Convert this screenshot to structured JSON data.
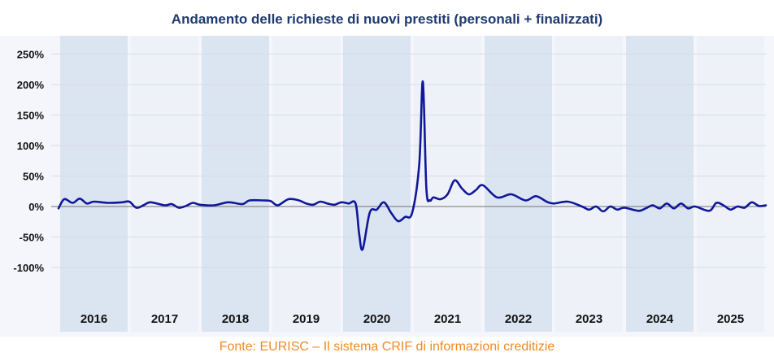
{
  "chart_data": {
    "type": "line",
    "title": "Andamento delle richieste di nuovi prestiti (personali + finalizzati)",
    "source": "Fonte: EURISC – Il sistema CRIF di informazioni creditizie",
    "xlabel": "",
    "ylabel": "",
    "y_unit": "%",
    "ylim": [
      -100,
      250
    ],
    "y_ticks": [
      "250%",
      "200%",
      "150%",
      "100%",
      "50%",
      "0%",
      "-50%",
      "-100%"
    ],
    "y_tick_values": [
      250,
      200,
      150,
      100,
      50,
      0,
      -50,
      -100
    ],
    "x_range": [
      2016,
      2026
    ],
    "years": [
      "2016",
      "2017",
      "2018",
      "2019",
      "2020",
      "2021",
      "2022",
      "2023",
      "2024",
      "2025"
    ],
    "grid": true,
    "band_colors": [
      "#dbe5f1",
      "#eef2f8"
    ],
    "line_color": "#10179a",
    "series": [
      {
        "x": [
          2016.0,
          2016.08,
          2016.2,
          2016.3,
          2016.4,
          2016.5,
          2016.7,
          2016.9,
          2017.0,
          2017.1,
          2017.2,
          2017.3,
          2017.5,
          2017.6,
          2017.7,
          2017.8,
          2017.9,
          2018.0,
          2018.2,
          2018.4,
          2018.6,
          2018.7,
          2018.9,
          2019.0,
          2019.1,
          2019.25,
          2019.4,
          2019.5,
          2019.6,
          2019.7,
          2019.8,
          2019.9,
          2020.0,
          2020.1,
          2020.2,
          2020.25,
          2020.3,
          2020.4,
          2020.5,
          2020.6,
          2020.7,
          2020.8,
          2020.9,
          2021.0,
          2021.1,
          2021.15,
          2021.2,
          2021.25,
          2021.3,
          2021.4,
          2021.5,
          2021.6,
          2021.7,
          2021.8,
          2021.9,
          2022.0,
          2022.2,
          2022.4,
          2022.6,
          2022.75,
          2022.9,
          2023.0,
          2023.2,
          2023.4,
          2023.5,
          2023.6,
          2023.7,
          2023.8,
          2023.9,
          2024.0,
          2024.2,
          2024.3,
          2024.4,
          2024.5,
          2024.6,
          2024.7,
          2024.8,
          2024.9,
          2025.0,
          2025.2,
          2025.3,
          2025.4,
          2025.5,
          2025.6,
          2025.7,
          2025.8,
          2025.9,
          2026.0
        ],
        "y": [
          -3,
          12,
          6,
          13,
          5,
          8,
          6,
          7,
          8,
          -2,
          2,
          7,
          2,
          4,
          -2,
          1,
          6,
          3,
          2,
          7,
          4,
          10,
          10,
          9,
          2,
          12,
          10,
          5,
          3,
          8,
          5,
          3,
          7,
          5,
          5,
          -45,
          -70,
          -10,
          -5,
          7,
          -10,
          -24,
          -17,
          -10,
          70,
          205,
          30,
          10,
          15,
          12,
          20,
          43,
          30,
          20,
          27,
          35,
          15,
          20,
          10,
          17,
          8,
          5,
          8,
          0,
          -5,
          0,
          -8,
          0,
          -5,
          -2,
          -7,
          -3,
          2,
          -3,
          5,
          -3,
          5,
          -3,
          0,
          -7,
          6,
          2,
          -5,
          0,
          -2,
          7,
          1,
          2
        ]
      }
    ]
  }
}
